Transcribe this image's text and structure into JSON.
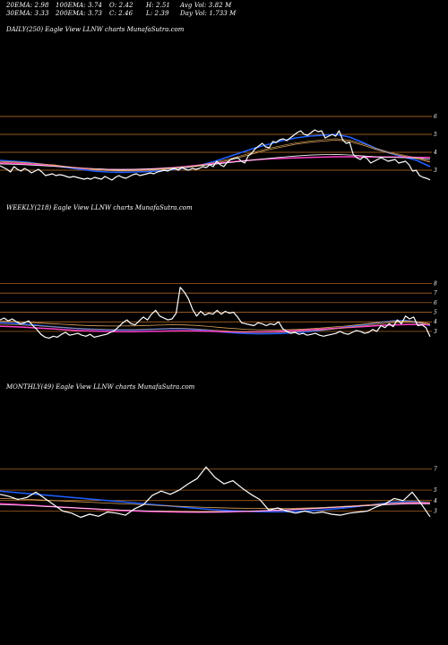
{
  "header": {
    "ema20": "20EMA: 2.98",
    "ema100": "100EMA: 3.74",
    "open": "O: 2.42",
    "high": "H: 2.51",
    "avg_vol": "Avg Vol: 3.82  M",
    "ema30": "30EMA: 3.33",
    "ema200": "200EMA: 3.73",
    "close": "C: 2.46",
    "low": "L: 2.39",
    "day_vol": "Day Vol: 1.733 M"
  },
  "colors": {
    "price": "#ffffff",
    "ema_blue": "#1f5fff",
    "ema_pink": "#ff3fc8",
    "ema_gold": "#d9a25a",
    "grid": "#c8752a",
    "background": "#000000"
  },
  "chart_data": [
    {
      "type": "line",
      "title": "DAILY(250) Eagle  View  LLNW charts MunafaSutra.com",
      "yticks": [
        "6",
        "5",
        "4",
        "3"
      ],
      "tick_values": [
        6,
        5,
        4,
        3
      ],
      "ylim": [
        2.0,
        6.5
      ],
      "n": 250,
      "series": [
        {
          "color": "#ffffff",
          "width": 1.2,
          "values": [
            3.25,
            3.15,
            3.05,
            2.9,
            3.2,
            3.05,
            2.95,
            3.1,
            3.0,
            2.85,
            2.95,
            3.05,
            2.9,
            2.7,
            2.75,
            2.8,
            2.7,
            2.75,
            2.72,
            2.65,
            2.6,
            2.65,
            2.6,
            2.55,
            2.5,
            2.55,
            2.5,
            2.6,
            2.55,
            2.5,
            2.65,
            2.55,
            2.45,
            2.6,
            2.7,
            2.6,
            2.55,
            2.65,
            2.75,
            2.8,
            2.7,
            2.75,
            2.8,
            2.85,
            2.8,
            2.9,
            2.95,
            3.0,
            2.95,
            3.05,
            3.1,
            3.0,
            3.15,
            3.05,
            3.0,
            3.1,
            3.05,
            3.1,
            3.2,
            3.15,
            3.3,
            3.2,
            3.5,
            3.3,
            3.2,
            3.45,
            3.6,
            3.65,
            3.7,
            3.5,
            3.4,
            3.8,
            3.95,
            4.2,
            4.35,
            4.5,
            4.3,
            4.25,
            4.6,
            4.55,
            4.7,
            4.75,
            4.65,
            4.8,
            4.95,
            5.1,
            5.2,
            5.0,
            4.95,
            5.1,
            5.25,
            5.15,
            5.2,
            4.8,
            4.9,
            5.0,
            4.9,
            5.2,
            4.7,
            4.5,
            4.55,
            3.9,
            3.7,
            3.6,
            3.75,
            3.65,
            3.4,
            3.5,
            3.6,
            3.7,
            3.6,
            3.5,
            3.55,
            3.6,
            3.4,
            3.45,
            3.5,
            3.3,
            2.95,
            3.0,
            2.7,
            2.6,
            2.55,
            2.46
          ]
        },
        {
          "color": "#1f5fff",
          "width": 1.6,
          "values": [
            3.55,
            3.5,
            3.45,
            3.35,
            3.25,
            3.15,
            3.05,
            2.95,
            2.9,
            2.88,
            2.9,
            2.92,
            2.97,
            3.05,
            3.15,
            3.3,
            3.5,
            3.75,
            4.0,
            4.25,
            4.45,
            4.65,
            4.8,
            4.9,
            4.95,
            5.0,
            4.85,
            4.55,
            4.2,
            3.95,
            3.75,
            3.55,
            3.2
          ]
        },
        {
          "color": "#d9a25a",
          "width": 0.8,
          "values": [
            3.45,
            3.45,
            3.4,
            3.35,
            3.3,
            3.2,
            3.1,
            3.02,
            2.98,
            2.96,
            2.97,
            2.99,
            3.02,
            3.08,
            3.15,
            3.25,
            3.4,
            3.55,
            3.75,
            3.95,
            4.15,
            4.3,
            4.45,
            4.55,
            4.62,
            4.68,
            4.6,
            4.4,
            4.15,
            3.95,
            3.8,
            3.65,
            3.45
          ]
        },
        {
          "color": "#ff3fc8",
          "width": 1.5,
          "values": [
            3.4,
            3.38,
            3.35,
            3.3,
            3.24,
            3.18,
            3.12,
            3.07,
            3.04,
            3.03,
            3.04,
            3.06,
            3.1,
            3.15,
            3.22,
            3.3,
            3.38,
            3.45,
            3.52,
            3.58,
            3.63,
            3.66,
            3.69,
            3.71,
            3.73,
            3.75,
            3.75,
            3.74,
            3.74,
            3.74,
            3.73,
            3.72,
            3.71
          ]
        },
        {
          "color": "#ffffff",
          "width": 0.8,
          "values": [
            3.35,
            3.33,
            3.3,
            3.26,
            3.22,
            3.17,
            3.12,
            3.08,
            3.05,
            3.04,
            3.05,
            3.07,
            3.1,
            3.14,
            3.2,
            3.27,
            3.34,
            3.42,
            3.5,
            3.58,
            3.66,
            3.73,
            3.79,
            3.84,
            3.87,
            3.88,
            3.85,
            3.8,
            3.75,
            3.72,
            3.7,
            3.68,
            3.62
          ]
        },
        {
          "color": "#d9a25a",
          "width": 0.6,
          "values": [
            3.5,
            3.47,
            3.42,
            3.36,
            3.28,
            3.2,
            3.12,
            3.06,
            3.01,
            2.99,
            3.0,
            3.02,
            3.06,
            3.12,
            3.2,
            3.3,
            3.45,
            3.62,
            3.82,
            4.02,
            4.22,
            4.38,
            4.52,
            4.62,
            4.7,
            4.76,
            4.68,
            4.48,
            4.22,
            4.0,
            3.85,
            3.7,
            3.5
          ]
        }
      ]
    },
    {
      "type": "line",
      "title": "WEEKLY(218) Eagle  View  LLNW charts MunafaSutra.com",
      "yticks": [
        "8",
        "7",
        "6",
        "5",
        "4",
        "3"
      ],
      "tick_values": [
        8,
        7,
        6,
        5,
        4,
        3
      ],
      "ylim": [
        1.5,
        8.6
      ],
      "n": 218,
      "series": [
        {
          "color": "#ffffff",
          "width": 1.2,
          "values": [
            4.2,
            4.4,
            4.1,
            4.3,
            4.0,
            3.8,
            3.9,
            4.1,
            3.6,
            3.2,
            2.7,
            2.4,
            2.3,
            2.5,
            2.4,
            2.7,
            2.9,
            2.6,
            2.7,
            2.8,
            2.6,
            2.5,
            2.7,
            2.4,
            2.5,
            2.6,
            2.7,
            2.9,
            3.1,
            3.5,
            3.9,
            4.2,
            3.8,
            3.7,
            4.1,
            4.5,
            4.2,
            4.8,
            5.2,
            4.6,
            4.4,
            4.2,
            4.3,
            4.9,
            7.6,
            7.1,
            6.4,
            5.3,
            4.6,
            5.1,
            4.7,
            4.9,
            4.8,
            5.2,
            4.8,
            5.1,
            4.9,
            5.0,
            4.5,
            3.9,
            3.8,
            3.7,
            3.6,
            3.9,
            3.8,
            3.6,
            3.8,
            3.7,
            4.0,
            3.3,
            3.0,
            2.8,
            2.9,
            2.7,
            2.8,
            2.6,
            2.7,
            2.8,
            2.6,
            2.5,
            2.6,
            2.7,
            2.8,
            3.0,
            2.8,
            2.7,
            2.9,
            3.1,
            3.0,
            2.8,
            2.9,
            3.2,
            3.0,
            3.6,
            3.4,
            3.8,
            3.5,
            4.2,
            3.8,
            4.6,
            4.3,
            4.5,
            3.6,
            3.7,
            3.4,
            2.46
          ]
        },
        {
          "color": "#1f5fff",
          "width": 1.5,
          "values": [
            3.9,
            3.85,
            3.75,
            3.65,
            3.52,
            3.42,
            3.32,
            3.25,
            3.2,
            3.16,
            3.15,
            3.16,
            3.2,
            3.25,
            3.3,
            3.28,
            3.2,
            3.08,
            2.95,
            2.85,
            2.78,
            2.75,
            2.76,
            2.8,
            2.88,
            2.98,
            3.1,
            3.25,
            3.42,
            3.6,
            3.78,
            3.95,
            4.1,
            4.15,
            3.95,
            3.6
          ]
        },
        {
          "color": "#ff3fc8",
          "width": 1.5,
          "values": [
            3.55,
            3.5,
            3.44,
            3.36,
            3.28,
            3.2,
            3.12,
            3.06,
            3.02,
            2.99,
            2.98,
            2.98,
            3.0,
            3.02,
            3.05,
            3.06,
            3.05,
            3.02,
            2.98,
            2.95,
            2.94,
            2.95,
            2.98,
            3.02,
            3.08,
            3.15,
            3.22,
            3.3,
            3.38,
            3.46,
            3.54,
            3.62,
            3.68,
            3.72,
            3.72,
            3.7
          ]
        },
        {
          "color": "#d9a25a",
          "width": 0.8,
          "values": [
            4.1,
            4.05,
            3.98,
            3.9,
            3.82,
            3.75,
            3.68,
            3.62,
            3.58,
            3.56,
            3.56,
            3.58,
            3.62,
            3.66,
            3.7,
            3.68,
            3.62,
            3.52,
            3.4,
            3.3,
            3.22,
            3.17,
            3.15,
            3.16,
            3.2,
            3.26,
            3.34,
            3.44,
            3.55,
            3.68,
            3.82,
            3.95,
            4.05,
            4.1,
            4.0,
            3.8
          ]
        },
        {
          "color": "#d9a25a",
          "width": 0.6,
          "values": [
            3.75,
            3.72,
            3.66,
            3.58,
            3.5,
            3.42,
            3.34,
            3.27,
            3.22,
            3.19,
            3.18,
            3.19,
            3.22,
            3.26,
            3.3,
            3.3,
            3.26,
            3.18,
            3.08,
            3.0,
            2.94,
            2.9,
            2.9,
            2.92,
            2.97,
            3.04,
            3.13,
            3.24,
            3.36,
            3.5,
            3.64,
            3.78,
            3.9,
            3.96,
            3.9,
            3.72
          ]
        }
      ]
    },
    {
      "type": "line",
      "title": "MONTHLY(49) Eagle  View  LLNW charts MunafaSutra.com",
      "yticks": [
        "7",
        "5",
        "4",
        "3"
      ],
      "tick_values": [
        7,
        5,
        4,
        3
      ],
      "ylim": [
        1.5,
        8.0
      ],
      "n": 49,
      "series": [
        {
          "color": "#ffffff",
          "width": 1.2,
          "values": [
            4.6,
            4.4,
            4.1,
            4.3,
            4.8,
            4.2,
            3.6,
            3.0,
            2.8,
            2.4,
            2.7,
            2.5,
            2.9,
            2.8,
            2.6,
            3.2,
            3.6,
            4.5,
            4.9,
            4.6,
            5.0,
            5.6,
            6.1,
            7.2,
            6.2,
            5.6,
            5.9,
            5.2,
            4.6,
            4.1,
            3.1,
            3.3,
            3.0,
            2.8,
            3.0,
            2.8,
            2.9,
            2.7,
            2.6,
            2.8,
            2.9,
            3.0,
            3.4,
            3.7,
            4.2,
            4.0,
            4.8,
            3.7,
            2.46
          ]
        },
        {
          "color": "#1f5fff",
          "width": 1.5,
          "values": [
            4.9,
            4.75,
            4.6,
            4.45,
            4.3,
            4.15,
            4.0,
            3.85,
            3.7,
            3.55,
            3.4,
            3.25,
            3.12,
            3.02,
            2.95,
            2.92,
            2.94,
            3.0,
            3.1,
            3.25,
            3.45,
            3.65,
            3.85,
            3.9,
            3.8
          ]
        },
        {
          "color": "#ff3fc8",
          "width": 1.5,
          "values": [
            3.7,
            3.62,
            3.52,
            3.42,
            3.32,
            3.22,
            3.12,
            3.04,
            2.98,
            2.93,
            2.9,
            2.89,
            2.9,
            2.93,
            2.98,
            3.04,
            3.12,
            3.2,
            3.3,
            3.4,
            3.5,
            3.6,
            3.68,
            3.74,
            3.75
          ]
        },
        {
          "color": "#d9a25a",
          "width": 0.8,
          "values": [
            4.2,
            4.15,
            4.08,
            4.0,
            3.92,
            3.84,
            3.76,
            3.68,
            3.6,
            3.52,
            3.45,
            3.38,
            3.32,
            3.28,
            3.25,
            3.24,
            3.25,
            3.28,
            3.34,
            3.42,
            3.52,
            3.64,
            3.76,
            3.84,
            3.82
          ]
        },
        {
          "color": "#ffffff",
          "width": 0.6,
          "values": [
            3.6,
            3.55,
            3.48,
            3.4,
            3.32,
            3.24,
            3.16,
            3.09,
            3.03,
            2.98,
            2.95,
            2.93,
            2.93,
            2.95,
            2.99,
            3.05,
            3.12,
            3.2,
            3.29,
            3.38,
            3.47,
            3.56,
            3.63,
            3.68,
            3.66
          ]
        }
      ]
    }
  ]
}
